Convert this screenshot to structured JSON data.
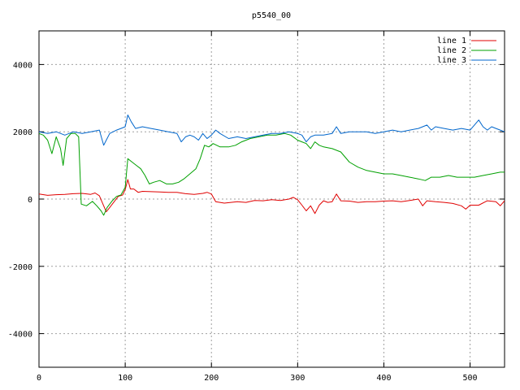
{
  "chart_data": {
    "type": "line",
    "title": "p5540_00",
    "xlabel": "",
    "ylabel": "",
    "xlim": [
      0,
      540
    ],
    "ylim": [
      -5000,
      5000
    ],
    "xticks": [
      0,
      100,
      200,
      300,
      400,
      500
    ],
    "yticks": [
      -4000,
      -2000,
      0,
      2000,
      4000
    ],
    "grid": true,
    "legend_position": "top-right",
    "series": [
      {
        "name": "line 1",
        "color": "#e00000",
        "points": [
          [
            0,
            150
          ],
          [
            10,
            110
          ],
          [
            20,
            130
          ],
          [
            30,
            140
          ],
          [
            40,
            160
          ],
          [
            50,
            170
          ],
          [
            60,
            140
          ],
          [
            65,
            180
          ],
          [
            70,
            100
          ],
          [
            75,
            -200
          ],
          [
            78,
            -380
          ],
          [
            82,
            -250
          ],
          [
            88,
            -50
          ],
          [
            92,
            80
          ],
          [
            97,
            120
          ],
          [
            100,
            280
          ],
          [
            103,
            580
          ],
          [
            106,
            300
          ],
          [
            110,
            300
          ],
          [
            115,
            200
          ],
          [
            120,
            230
          ],
          [
            130,
            220
          ],
          [
            140,
            210
          ],
          [
            150,
            200
          ],
          [
            160,
            200
          ],
          [
            170,
            160
          ],
          [
            180,
            140
          ],
          [
            190,
            170
          ],
          [
            195,
            200
          ],
          [
            200,
            150
          ],
          [
            205,
            -80
          ],
          [
            215,
            -120
          ],
          [
            230,
            -80
          ],
          [
            240,
            -100
          ],
          [
            250,
            -40
          ],
          [
            260,
            -50
          ],
          [
            270,
            -20
          ],
          [
            280,
            -40
          ],
          [
            290,
            0
          ],
          [
            295,
            50
          ],
          [
            300,
            -20
          ],
          [
            305,
            -180
          ],
          [
            310,
            -350
          ],
          [
            315,
            -200
          ],
          [
            320,
            -430
          ],
          [
            325,
            -180
          ],
          [
            330,
            -50
          ],
          [
            335,
            -100
          ],
          [
            340,
            -80
          ],
          [
            345,
            150
          ],
          [
            350,
            -50
          ],
          [
            360,
            -60
          ],
          [
            370,
            -100
          ],
          [
            380,
            -80
          ],
          [
            390,
            -80
          ],
          [
            400,
            -60
          ],
          [
            410,
            -50
          ],
          [
            420,
            -80
          ],
          [
            430,
            -40
          ],
          [
            440,
            0
          ],
          [
            445,
            -200
          ],
          [
            450,
            -50
          ],
          [
            460,
            -80
          ],
          [
            470,
            -100
          ],
          [
            480,
            -130
          ],
          [
            490,
            -200
          ],
          [
            495,
            -300
          ],
          [
            500,
            -180
          ],
          [
            510,
            -180
          ],
          [
            520,
            -50
          ],
          [
            530,
            -80
          ],
          [
            535,
            -200
          ],
          [
            540,
            -50
          ]
        ]
      },
      {
        "name": "line 2",
        "color": "#00a000",
        "points": [
          [
            0,
            1950
          ],
          [
            5,
            1900
          ],
          [
            10,
            1750
          ],
          [
            15,
            1350
          ],
          [
            20,
            1850
          ],
          [
            25,
            1500
          ],
          [
            28,
            1000
          ],
          [
            32,
            1800
          ],
          [
            37,
            1950
          ],
          [
            42,
            1950
          ],
          [
            46,
            1850
          ],
          [
            49,
            -150
          ],
          [
            55,
            -200
          ],
          [
            62,
            -70
          ],
          [
            67,
            -200
          ],
          [
            72,
            -350
          ],
          [
            75,
            -480
          ],
          [
            79,
            -250
          ],
          [
            85,
            -50
          ],
          [
            90,
            80
          ],
          [
            95,
            120
          ],
          [
            100,
            350
          ],
          [
            103,
            1200
          ],
          [
            108,
            1100
          ],
          [
            113,
            1000
          ],
          [
            118,
            900
          ],
          [
            123,
            700
          ],
          [
            128,
            450
          ],
          [
            133,
            500
          ],
          [
            140,
            550
          ],
          [
            148,
            450
          ],
          [
            155,
            450
          ],
          [
            162,
            500
          ],
          [
            168,
            600
          ],
          [
            175,
            750
          ],
          [
            182,
            900
          ],
          [
            187,
            1200
          ],
          [
            192,
            1600
          ],
          [
            197,
            1550
          ],
          [
            202,
            1650
          ],
          [
            210,
            1550
          ],
          [
            220,
            1550
          ],
          [
            228,
            1600
          ],
          [
            235,
            1700
          ],
          [
            245,
            1800
          ],
          [
            255,
            1850
          ],
          [
            265,
            1900
          ],
          [
            275,
            1900
          ],
          [
            285,
            1950
          ],
          [
            292,
            1900
          ],
          [
            300,
            1750
          ],
          [
            305,
            1700
          ],
          [
            310,
            1650
          ],
          [
            315,
            1500
          ],
          [
            320,
            1700
          ],
          [
            325,
            1600
          ],
          [
            330,
            1550
          ],
          [
            340,
            1500
          ],
          [
            350,
            1400
          ],
          [
            360,
            1100
          ],
          [
            370,
            950
          ],
          [
            380,
            850
          ],
          [
            390,
            800
          ],
          [
            400,
            750
          ],
          [
            410,
            750
          ],
          [
            420,
            700
          ],
          [
            430,
            650
          ],
          [
            440,
            600
          ],
          [
            448,
            550
          ],
          [
            455,
            650
          ],
          [
            465,
            650
          ],
          [
            475,
            700
          ],
          [
            485,
            650
          ],
          [
            495,
            650
          ],
          [
            505,
            650
          ],
          [
            515,
            700
          ],
          [
            525,
            750
          ],
          [
            535,
            800
          ],
          [
            540,
            800
          ]
        ]
      },
      {
        "name": "line 3",
        "color": "#0066cc",
        "points": [
          [
            0,
            2000
          ],
          [
            10,
            1950
          ],
          [
            20,
            2000
          ],
          [
            30,
            1900
          ],
          [
            40,
            2000
          ],
          [
            50,
            1950
          ],
          [
            60,
            2000
          ],
          [
            70,
            2050
          ],
          [
            75,
            1600
          ],
          [
            78,
            1750
          ],
          [
            82,
            1950
          ],
          [
            90,
            2050
          ],
          [
            95,
            2100
          ],
          [
            100,
            2150
          ],
          [
            103,
            2500
          ],
          [
            107,
            2300
          ],
          [
            112,
            2100
          ],
          [
            120,
            2150
          ],
          [
            130,
            2100
          ],
          [
            140,
            2050
          ],
          [
            150,
            2000
          ],
          [
            160,
            1950
          ],
          [
            165,
            1700
          ],
          [
            170,
            1850
          ],
          [
            175,
            1900
          ],
          [
            180,
            1850
          ],
          [
            185,
            1750
          ],
          [
            190,
            1950
          ],
          [
            195,
            1800
          ],
          [
            200,
            1900
          ],
          [
            205,
            2050
          ],
          [
            210,
            1950
          ],
          [
            220,
            1800
          ],
          [
            230,
            1850
          ],
          [
            240,
            1800
          ],
          [
            250,
            1850
          ],
          [
            260,
            1900
          ],
          [
            270,
            1950
          ],
          [
            280,
            1950
          ],
          [
            290,
            2000
          ],
          [
            300,
            1950
          ],
          [
            305,
            1900
          ],
          [
            310,
            1700
          ],
          [
            315,
            1850
          ],
          [
            320,
            1900
          ],
          [
            330,
            1900
          ],
          [
            340,
            1950
          ],
          [
            345,
            2150
          ],
          [
            350,
            1950
          ],
          [
            360,
            2000
          ],
          [
            370,
            2000
          ],
          [
            380,
            2000
          ],
          [
            390,
            1950
          ],
          [
            400,
            2000
          ],
          [
            410,
            2050
          ],
          [
            420,
            2000
          ],
          [
            430,
            2050
          ],
          [
            440,
            2100
          ],
          [
            450,
            2200
          ],
          [
            455,
            2050
          ],
          [
            460,
            2150
          ],
          [
            470,
            2100
          ],
          [
            480,
            2050
          ],
          [
            490,
            2100
          ],
          [
            500,
            2050
          ],
          [
            505,
            2200
          ],
          [
            510,
            2350
          ],
          [
            515,
            2150
          ],
          [
            520,
            2050
          ],
          [
            525,
            2150
          ],
          [
            530,
            2100
          ],
          [
            535,
            2050
          ],
          [
            540,
            2000
          ]
        ]
      }
    ]
  }
}
